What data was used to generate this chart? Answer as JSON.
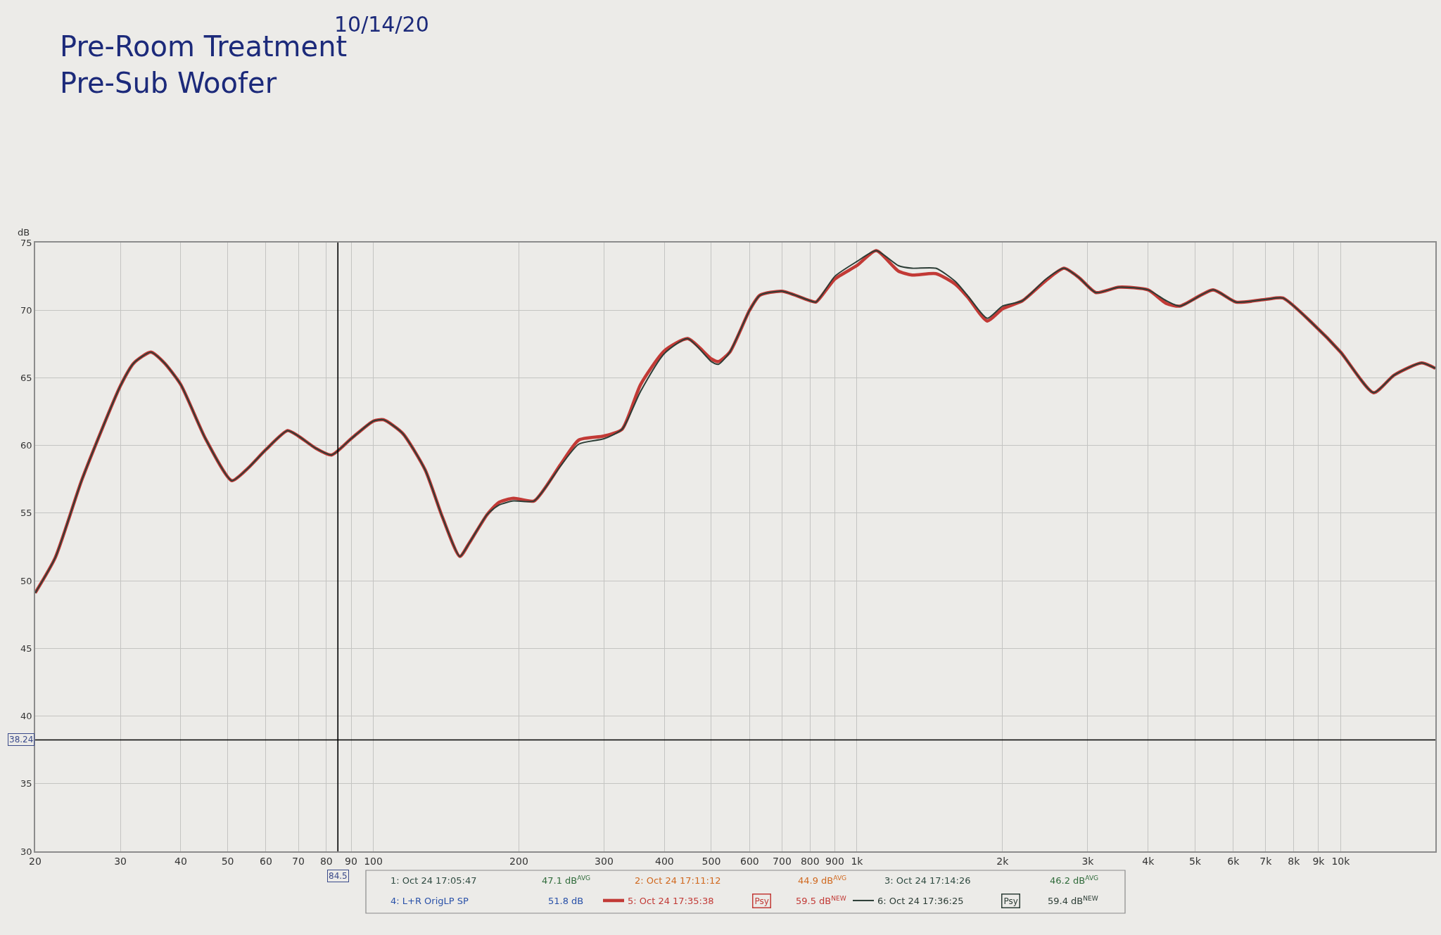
{
  "chart_data": {
    "type": "line",
    "title": "Pre-Room Treatment\nPre-Sub Woofer",
    "ylabel": "dB",
    "annotations": [
      "10/14/20",
      "1: Oct 24 17:05:47",
      "47.1 dB$^{AVG}$",
      "2: Oct 24 17:11:12",
      "44.9 dB$^{AVG}$",
      "3: Oct 24 17:14:26",
      "46.2 dB$^{AVG}$",
      "4: L+R OrigLP SP",
      "51.8 dB",
      "Psy",
      "59.5 dB$^{NEW}$",
      "Psy",
      "59.4 dB$^{NEW}$"
    ],
    "x": [
      20,
      22,
      25,
      30,
      32,
      34.7,
      37,
      40,
      45,
      51,
      55,
      60,
      66.5,
      70,
      76,
      82,
      90,
      100,
      105,
      115,
      128,
      139,
      151,
      158,
      172,
      182,
      195,
      215,
      244,
      266,
      300,
      327,
      357,
      400,
      447,
      500,
      517,
      546,
      600,
      630,
      700,
      800,
      823,
      900,
      1000,
      1096,
      1217,
      1300,
      1456,
      1600,
      1700,
      1860,
      2000,
      2200,
      2460,
      2680,
      2880,
      3120,
      3480,
      4000,
      4360,
      4650,
      5450,
      6080,
      7010,
      7600,
      8760,
      10000,
      11700,
      12900,
      14700,
      15700
    ],
    "series": [
      {
        "name": "5: Oct 24 17:35:38",
        "color": "#c23a36",
        "values": [
          49.1,
          51.7,
          57.5,
          64.4,
          66.1,
          66.9,
          66.1,
          64.5,
          60.5,
          57.4,
          58.3,
          59.7,
          61.1,
          60.7,
          59.8,
          59.3,
          60.5,
          61.8,
          61.9,
          60.9,
          58.2,
          54.7,
          51.8,
          52.8,
          54.9,
          55.8,
          56.1,
          55.9,
          58.6,
          60.4,
          60.7,
          61.2,
          64.5,
          67.0,
          67.9,
          66.4,
          66.2,
          66.9,
          70.0,
          71.1,
          71.4,
          70.7,
          70.6,
          72.3,
          73.3,
          74.4,
          72.9,
          72.6,
          72.7,
          71.9,
          70.9,
          69.2,
          70.1,
          70.7,
          72.2,
          73.1,
          72.4,
          71.3,
          71.7,
          71.5,
          70.5,
          70.3,
          71.5,
          70.6,
          70.8,
          70.9,
          69.0,
          66.9,
          63.9,
          65.2,
          66.1,
          65.7
        ]
      },
      {
        "name": "6: Oct 24 17:36:25",
        "color": "#2c3d36",
        "values": [
          49.1,
          51.7,
          57.5,
          64.4,
          66.1,
          66.9,
          66.1,
          64.5,
          60.5,
          57.4,
          58.3,
          59.7,
          61.1,
          60.7,
          59.8,
          59.3,
          60.5,
          61.8,
          61.9,
          60.9,
          58.2,
          54.7,
          51.8,
          52.8,
          54.9,
          55.6,
          55.9,
          55.9,
          58.5,
          60.1,
          60.5,
          61.2,
          64.0,
          66.8,
          67.9,
          66.2,
          66.0,
          66.9,
          70.0,
          71.1,
          71.4,
          70.7,
          70.6,
          72.5,
          73.6,
          74.4,
          73.3,
          73.1,
          73.1,
          72.1,
          71.0,
          69.4,
          70.3,
          70.7,
          72.3,
          73.1,
          72.4,
          71.3,
          71.7,
          71.5,
          70.7,
          70.3,
          71.5,
          70.6,
          70.8,
          70.9,
          69.0,
          66.9,
          63.9,
          65.2,
          66.1,
          65.7
        ]
      }
    ],
    "xlim": [
      20,
      15700
    ],
    "xticks": [
      20,
      30,
      40,
      50,
      60,
      70,
      80,
      90,
      100,
      200,
      300,
      400,
      500,
      600,
      700,
      800,
      900,
      {
        "value": 1000,
        "label": "1k"
      },
      {
        "value": 2000,
        "label": "2k"
      },
      {
        "value": 3000,
        "label": "3k"
      },
      {
        "value": 4000,
        "label": "4k"
      },
      {
        "value": 5000,
        "label": "5k"
      },
      {
        "value": 6000,
        "label": "6k"
      },
      {
        "value": 7000,
        "label": "7k"
      },
      {
        "value": 8000,
        "label": "8k"
      },
      {
        "value": 9000,
        "label": "9k"
      },
      {
        "value": 10000,
        "label": "10k"
      }
    ],
    "ylim": [
      30,
      75
    ],
    "yticks": [
      30,
      35,
      40,
      45,
      50,
      55,
      60,
      65,
      70,
      75
    ],
    "log": "x",
    "grid": true,
    "legend": "bottom",
    "line_style": "solid",
    "ref_lines": [
      {
        "axis": "x",
        "value": 84.5,
        "label": "84.5",
        "color": "#000000"
      },
      {
        "axis": "y",
        "value": 38.24,
        "label": "38.24",
        "color": "#000000"
      }
    ]
  }
}
